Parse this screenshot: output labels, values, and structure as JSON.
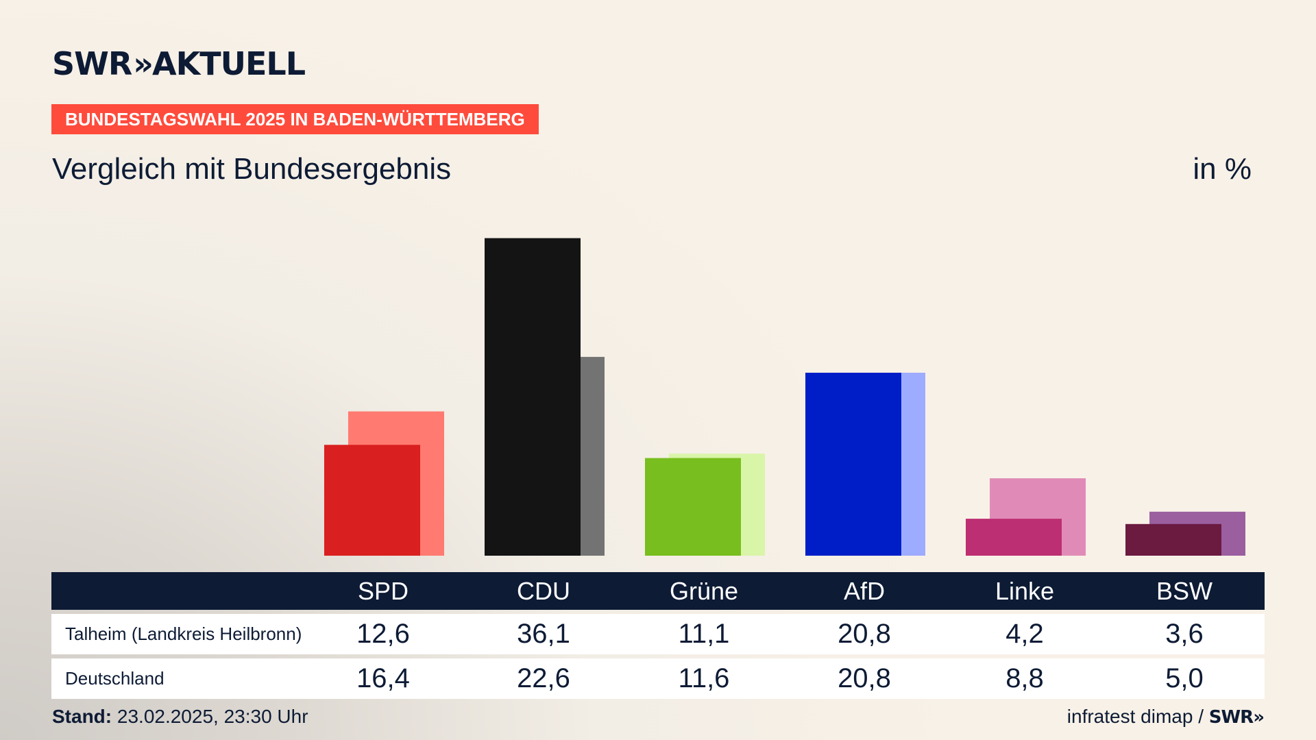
{
  "header": {
    "logo_text": "SWR",
    "logo_chevrons": "»",
    "logo_suffix": "AKTUELL",
    "badge": "BUNDESTAGSWAHL 2025 IN BADEN-WÜRTTEMBERG",
    "subtitle": "Vergleich mit Bundesergebnis",
    "unit": "in %"
  },
  "chart_data": {
    "type": "bar",
    "title": "Vergleich mit Bundesergebnis",
    "unit": "in %",
    "categories": [
      "SPD",
      "CDU",
      "Grüne",
      "AfD",
      "Linke",
      "BSW"
    ],
    "series": [
      {
        "name": "Talheim (Landkreis Heilbronn)",
        "values": [
          12.6,
          36.1,
          11.1,
          20.8,
          4.2,
          3.6
        ],
        "colors": [
          "#d91f1f",
          "#141414",
          "#78be1e",
          "#001ec8",
          "#bc2f72",
          "#6b1a40"
        ]
      },
      {
        "name": "Deutschland",
        "values": [
          16.4,
          22.6,
          11.6,
          20.8,
          8.8,
          5.0
        ],
        "colors": [
          "#ff7a70",
          "#737373",
          "#d9f5a8",
          "#9eacff",
          "#e08bb7",
          "#9b5fa0"
        ]
      }
    ],
    "value_labels": [
      [
        "12,6",
        "36,1",
        "11,1",
        "20,8",
        "4,2",
        "3,6"
      ],
      [
        "16,4",
        "22,6",
        "11,6",
        "20,8",
        "8,8",
        "5,0"
      ]
    ],
    "ylim": [
      0,
      37
    ],
    "grid": false,
    "legend": "table-below"
  },
  "footer": {
    "stand_label": "Stand:",
    "stand_value": "23.02.2025, 23:30 Uhr",
    "source": "infratest dimap /",
    "source_logo": "SWR»"
  }
}
